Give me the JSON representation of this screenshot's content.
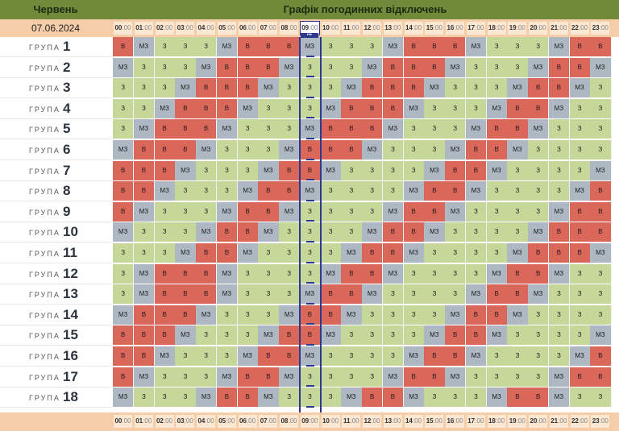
{
  "header": {
    "month": "Червень",
    "title": "Графік погодинних відключень"
  },
  "date": "07.06.2024",
  "group_word": "ГРУПА",
  "now_marker": "•••",
  "current_hour_index": 9,
  "colors": {
    "off": "#d9675a",
    "maybe": "#aeb8c2",
    "on": "#c6d79a",
    "header": "#6f8a3b",
    "hour_bar": "#f5cda8"
  },
  "hours": [
    "00",
    "01",
    "02",
    "03",
    "04",
    "05",
    "06",
    "07",
    "08",
    "09",
    "10",
    "11",
    "12",
    "13",
    "14",
    "15",
    "16",
    "17",
    "18",
    "19",
    "20",
    "21",
    "22",
    "23"
  ],
  "minutes": ":00",
  "groups": [
    {
      "n": "1",
      "s": [
        "В",
        "МЗ",
        "З",
        "З",
        "З",
        "МЗ",
        "В",
        "В",
        "В",
        "МЗ",
        "З",
        "З",
        "З",
        "МЗ",
        "В",
        "В",
        "В",
        "МЗ",
        "З",
        "З",
        "З",
        "МЗ",
        "В",
        "В"
      ]
    },
    {
      "n": "2",
      "s": [
        "МЗ",
        "З",
        "З",
        "З",
        "МЗ",
        "В",
        "В",
        "В",
        "МЗ",
        "З",
        "З",
        "З",
        "МЗ",
        "В",
        "В",
        "В",
        "МЗ",
        "З",
        "З",
        "З",
        "МЗ",
        "В",
        "В",
        "МЗ"
      ]
    },
    {
      "n": "3",
      "s": [
        "З",
        "З",
        "З",
        "МЗ",
        "В",
        "В",
        "В",
        "МЗ",
        "З",
        "З",
        "З",
        "МЗ",
        "В",
        "В",
        "В",
        "МЗ",
        "З",
        "З",
        "З",
        "МЗ",
        "В",
        "В",
        "МЗ",
        "З"
      ]
    },
    {
      "n": "4",
      "s": [
        "З",
        "З",
        "МЗ",
        "В",
        "В",
        "В",
        "МЗ",
        "З",
        "З",
        "З",
        "МЗ",
        "В",
        "В",
        "В",
        "МЗ",
        "З",
        "З",
        "З",
        "МЗ",
        "В",
        "В",
        "МЗ",
        "З",
        "З"
      ]
    },
    {
      "n": "5",
      "s": [
        "З",
        "МЗ",
        "В",
        "В",
        "В",
        "МЗ",
        "З",
        "З",
        "З",
        "МЗ",
        "В",
        "В",
        "В",
        "МЗ",
        "З",
        "З",
        "З",
        "МЗ",
        "В",
        "В",
        "МЗ",
        "З",
        "З",
        "З"
      ]
    },
    {
      "n": "6",
      "s": [
        "МЗ",
        "В",
        "В",
        "В",
        "МЗ",
        "З",
        "З",
        "З",
        "МЗ",
        "В",
        "В",
        "В",
        "МЗ",
        "З",
        "З",
        "З",
        "МЗ",
        "В",
        "В",
        "МЗ",
        "З",
        "З",
        "З",
        "З"
      ]
    },
    {
      "n": "7",
      "s": [
        "В",
        "В",
        "В",
        "МЗ",
        "З",
        "З",
        "З",
        "МЗ",
        "В",
        "В",
        "МЗ",
        "З",
        "З",
        "З",
        "З",
        "МЗ",
        "В",
        "В",
        "МЗ",
        "З",
        "З",
        "З",
        "З",
        "МЗ"
      ]
    },
    {
      "n": "8",
      "s": [
        "В",
        "В",
        "МЗ",
        "З",
        "З",
        "З",
        "МЗ",
        "В",
        "В",
        "МЗ",
        "З",
        "З",
        "З",
        "З",
        "МЗ",
        "В",
        "В",
        "МЗ",
        "З",
        "З",
        "З",
        "З",
        "МЗ",
        "В"
      ]
    },
    {
      "n": "9",
      "s": [
        "В",
        "МЗ",
        "З",
        "З",
        "З",
        "МЗ",
        "В",
        "В",
        "МЗ",
        "З",
        "З",
        "З",
        "З",
        "МЗ",
        "В",
        "В",
        "МЗ",
        "З",
        "З",
        "З",
        "З",
        "МЗ",
        "В",
        "В"
      ]
    },
    {
      "n": "10",
      "s": [
        "МЗ",
        "З",
        "З",
        "З",
        "МЗ",
        "В",
        "В",
        "МЗ",
        "З",
        "З",
        "З",
        "З",
        "МЗ",
        "В",
        "В",
        "МЗ",
        "З",
        "З",
        "З",
        "З",
        "МЗ",
        "В",
        "В",
        "В"
      ]
    },
    {
      "n": "11",
      "s": [
        "З",
        "З",
        "З",
        "МЗ",
        "В",
        "В",
        "МЗ",
        "З",
        "З",
        "З",
        "З",
        "МЗ",
        "В",
        "В",
        "МЗ",
        "З",
        "З",
        "З",
        "З",
        "МЗ",
        "В",
        "В",
        "В",
        "МЗ"
      ]
    },
    {
      "n": "12",
      "s": [
        "З",
        "МЗ",
        "В",
        "В",
        "В",
        "МЗ",
        "З",
        "З",
        "З",
        "З",
        "МЗ",
        "В",
        "В",
        "МЗ",
        "З",
        "З",
        "З",
        "З",
        "МЗ",
        "В",
        "В",
        "МЗ",
        "З",
        "З"
      ]
    },
    {
      "n": "13",
      "s": [
        "З",
        "МЗ",
        "В",
        "В",
        "В",
        "МЗ",
        "З",
        "З",
        "З",
        "МЗ",
        "В",
        "В",
        "МЗ",
        "З",
        "З",
        "З",
        "З",
        "МЗ",
        "В",
        "В",
        "МЗ",
        "З",
        "З",
        "З"
      ]
    },
    {
      "n": "14",
      "s": [
        "МЗ",
        "В",
        "В",
        "В",
        "МЗ",
        "З",
        "З",
        "З",
        "МЗ",
        "В",
        "В",
        "МЗ",
        "З",
        "З",
        "З",
        "З",
        "МЗ",
        "В",
        "В",
        "МЗ",
        "З",
        "З",
        "З",
        "З"
      ]
    },
    {
      "n": "15",
      "s": [
        "В",
        "В",
        "В",
        "МЗ",
        "З",
        "З",
        "З",
        "МЗ",
        "В",
        "В",
        "МЗ",
        "З",
        "З",
        "З",
        "З",
        "МЗ",
        "В",
        "В",
        "МЗ",
        "З",
        "З",
        "З",
        "З",
        "МЗ"
      ]
    },
    {
      "n": "16",
      "s": [
        "В",
        "В",
        "МЗ",
        "З",
        "З",
        "З",
        "МЗ",
        "В",
        "В",
        "МЗ",
        "З",
        "З",
        "З",
        "З",
        "МЗ",
        "В",
        "В",
        "МЗ",
        "З",
        "З",
        "З",
        "З",
        "МЗ",
        "В"
      ]
    },
    {
      "n": "17",
      "s": [
        "В",
        "МЗ",
        "З",
        "З",
        "З",
        "МЗ",
        "В",
        "В",
        "МЗ",
        "З",
        "З",
        "З",
        "З",
        "МЗ",
        "В",
        "В",
        "МЗ",
        "З",
        "З",
        "З",
        "З",
        "МЗ",
        "В",
        "В"
      ]
    },
    {
      "n": "18",
      "s": [
        "МЗ",
        "З",
        "З",
        "З",
        "МЗ",
        "В",
        "В",
        "МЗ",
        "З",
        "З",
        "З",
        "МЗ",
        "В",
        "В",
        "МЗ",
        "З",
        "З",
        "З",
        "МЗ",
        "В",
        "В",
        "МЗ",
        "З",
        "З"
      ]
    }
  ]
}
